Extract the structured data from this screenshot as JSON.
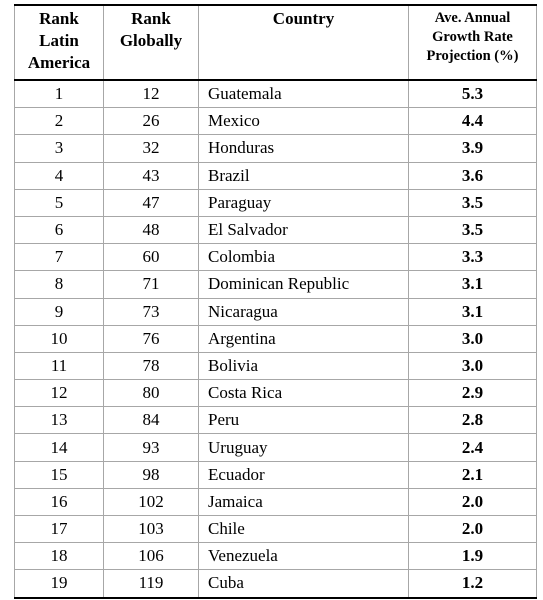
{
  "table": {
    "headers": {
      "rank_latin_america": [
        "Rank",
        "Latin",
        "America"
      ],
      "rank_globally": [
        "Rank",
        "Globally"
      ],
      "country": "Country",
      "growth": [
        "Ave. Annual",
        "Growth Rate",
        "Projection (%)"
      ]
    },
    "rows": [
      {
        "rank_la": "1",
        "rank_global": "12",
        "country": "Guatemala",
        "growth": "5.3"
      },
      {
        "rank_la": "2",
        "rank_global": "26",
        "country": "Mexico",
        "growth": "4.4"
      },
      {
        "rank_la": "3",
        "rank_global": "32",
        "country": "Honduras",
        "growth": "3.9"
      },
      {
        "rank_la": "4",
        "rank_global": "43",
        "country": "Brazil",
        "growth": "3.6"
      },
      {
        "rank_la": "5",
        "rank_global": "47",
        "country": "Paraguay",
        "growth": "3.5"
      },
      {
        "rank_la": "6",
        "rank_global": "48",
        "country": "El Salvador",
        "growth": "3.5"
      },
      {
        "rank_la": "7",
        "rank_global": "60",
        "country": "Colombia",
        "growth": "3.3"
      },
      {
        "rank_la": "8",
        "rank_global": "71",
        "country": "Dominican Republic",
        "growth": "3.1"
      },
      {
        "rank_la": "9",
        "rank_global": "73",
        "country": "Nicaragua",
        "growth": "3.1"
      },
      {
        "rank_la": "10",
        "rank_global": "76",
        "country": "Argentina",
        "growth": "3.0"
      },
      {
        "rank_la": "11",
        "rank_global": "78",
        "country": "Bolivia",
        "growth": "3.0"
      },
      {
        "rank_la": "12",
        "rank_global": "80",
        "country": "Costa Rica",
        "growth": "2.9"
      },
      {
        "rank_la": "13",
        "rank_global": "84",
        "country": "Peru",
        "growth": "2.8"
      },
      {
        "rank_la": "14",
        "rank_global": "93",
        "country": "Uruguay",
        "growth": "2.4"
      },
      {
        "rank_la": "15",
        "rank_global": "98",
        "country": "Ecuador",
        "growth": "2.1"
      },
      {
        "rank_la": "16",
        "rank_global": "102",
        "country": "Jamaica",
        "growth": "2.0"
      },
      {
        "rank_la": "17",
        "rank_global": "103",
        "country": "Chile",
        "growth": "2.0"
      },
      {
        "rank_la": "18",
        "rank_global": "106",
        "country": "Venezuela",
        "growth": "1.9"
      },
      {
        "rank_la": "19",
        "rank_global": "119",
        "country": "Cuba",
        "growth": "1.2"
      }
    ]
  }
}
